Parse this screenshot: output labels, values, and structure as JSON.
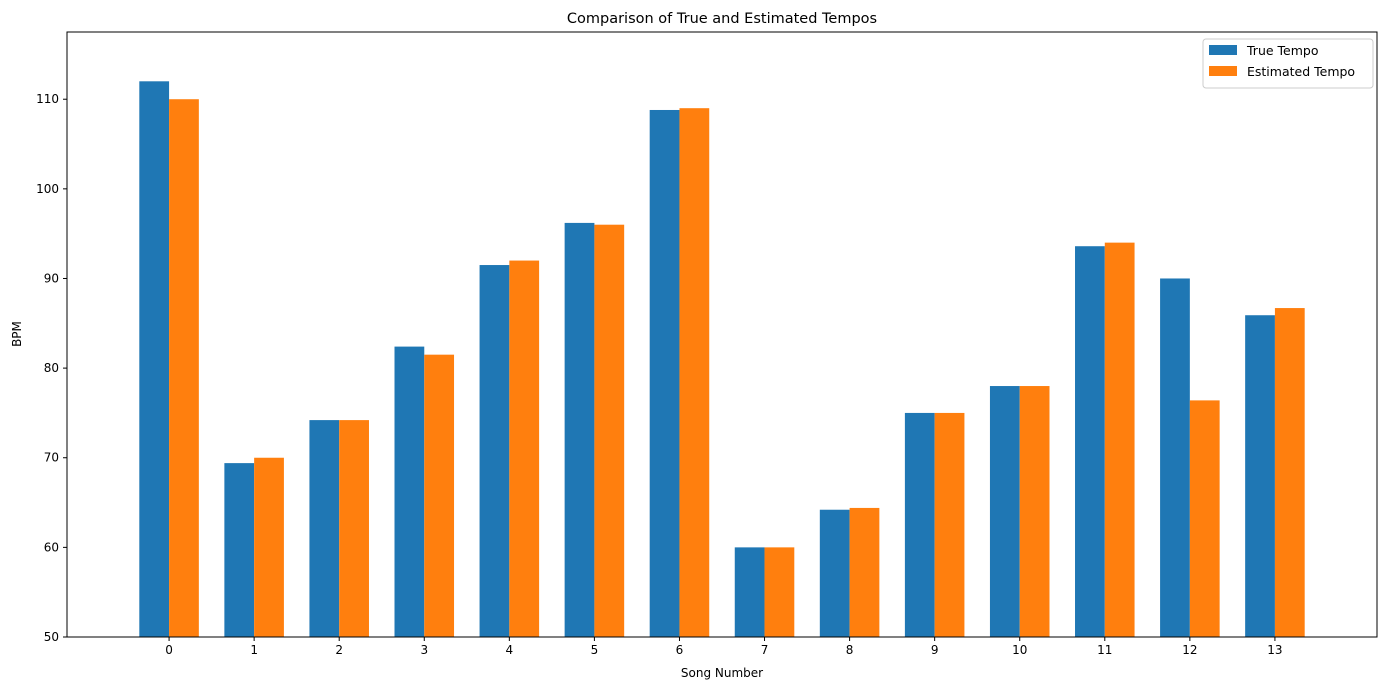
{
  "chart_data": {
    "type": "bar",
    "title": "Comparison of True and Estimated Tempos",
    "xlabel": "Song Number",
    "ylabel": "BPM",
    "categories": [
      "0",
      "1",
      "2",
      "3",
      "4",
      "5",
      "6",
      "7",
      "8",
      "9",
      "10",
      "11",
      "12",
      "13"
    ],
    "ylim": [
      50,
      117.5
    ],
    "yticks": [
      50,
      60,
      70,
      80,
      90,
      100,
      110
    ],
    "series": [
      {
        "name": "True Tempo",
        "color": "#1f77b4",
        "values": [
          112.0,
          69.4,
          74.2,
          82.4,
          91.5,
          96.2,
          108.8,
          60.0,
          64.2,
          75.0,
          78.0,
          93.6,
          90.0,
          85.9
        ]
      },
      {
        "name": "Estimated Tempo",
        "color": "#ff7f0e",
        "values": [
          110.0,
          70.0,
          74.2,
          81.5,
          92.0,
          96.0,
          109.0,
          60.0,
          64.4,
          75.0,
          78.0,
          94.0,
          76.4,
          86.7
        ]
      }
    ],
    "grid": false,
    "legend_position": "top-right"
  }
}
